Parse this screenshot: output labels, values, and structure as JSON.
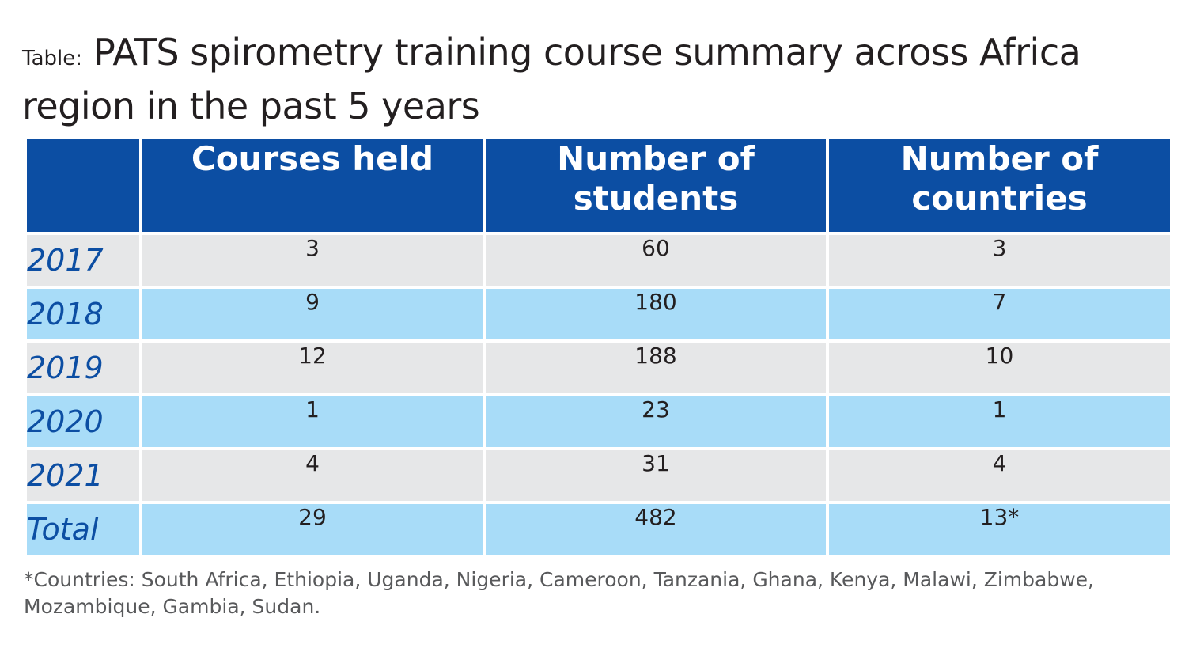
{
  "title": {
    "prefix": "Table:",
    "text": "PATS spirometry training course summary across Africa region in the past 5 years"
  },
  "table": {
    "headers": [
      "",
      "Courses held",
      "Number of students",
      "Number of countries"
    ],
    "rows": [
      {
        "year": "2017",
        "courses": "3",
        "students": "60",
        "countries": "3"
      },
      {
        "year": "2018",
        "courses": "9",
        "students": "180",
        "countries": "7"
      },
      {
        "year": "2019",
        "courses": "12",
        "students": "188",
        "countries": "10"
      },
      {
        "year": "2020",
        "courses": "1",
        "students": "23",
        "countries": "1"
      },
      {
        "year": "2021",
        "courses": "4",
        "students": "31",
        "countries": "4"
      },
      {
        "year": "Total",
        "courses": "29",
        "students": "482",
        "countries": "13*"
      }
    ]
  },
  "footnote": "*Countries: South Africa, Ethiopia, Uganda, Nigeria, Cameroon, Tanzania, Ghana, Kenya, Malawi, Zimbabwe, Mozambique, Gambia, Sudan.",
  "colors": {
    "header_bg": "#0c4ea3",
    "row_grey": "#e6e7e8",
    "row_blue": "#a8dcf8",
    "year_text": "#0c4ea3"
  }
}
